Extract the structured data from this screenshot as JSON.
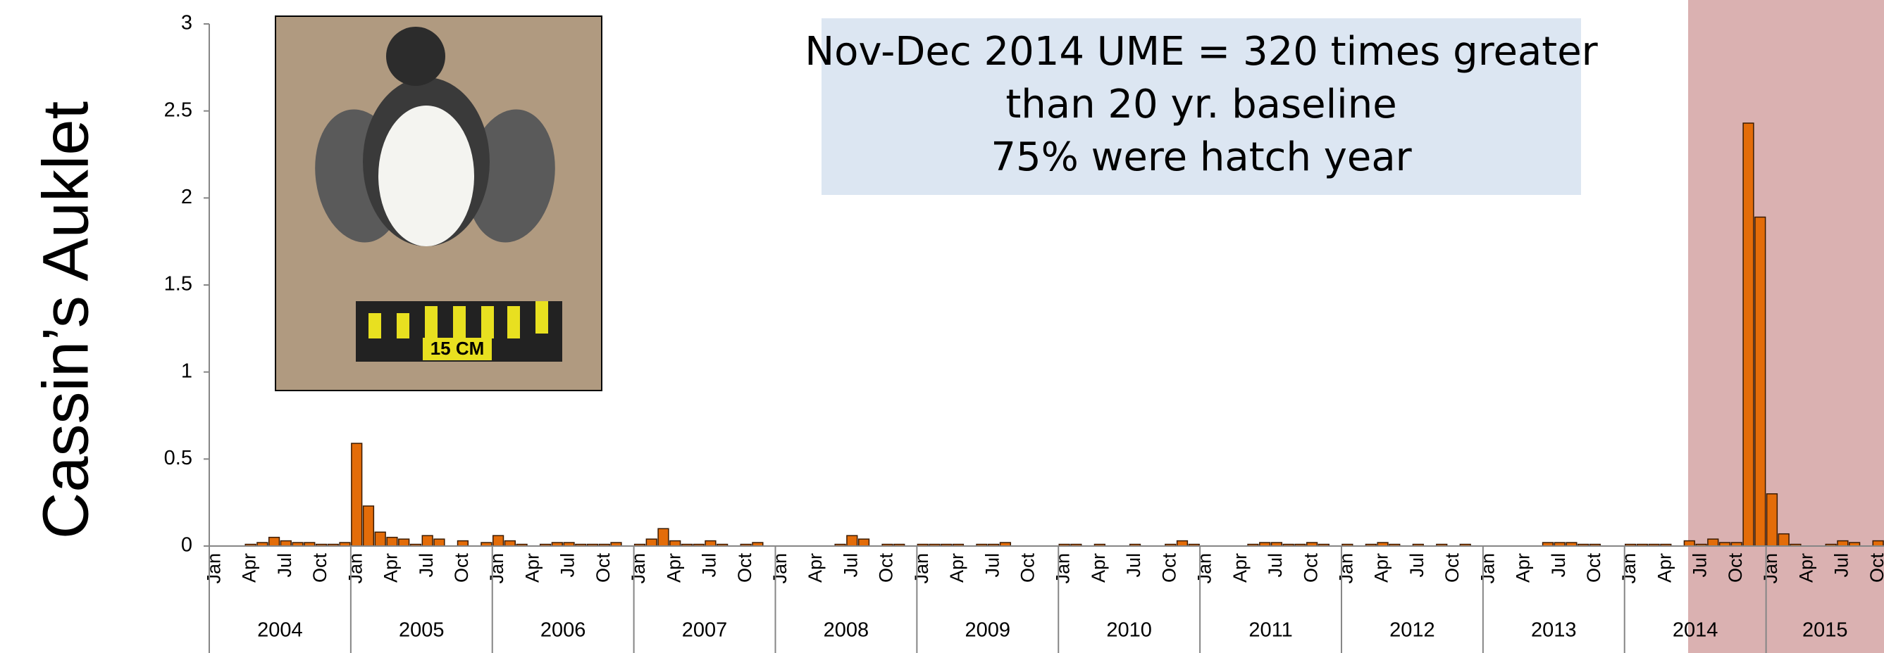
{
  "chart_data": {
    "type": "bar",
    "y_label": "Cassin’s Auklet",
    "annotation": [
      "Nov-Dec 2014 UME = 320 times greater",
      "than 20 yr. baseline",
      "75% were hatch year"
    ],
    "photo_scale_label": "15 CM",
    "color": "#e36c09",
    "ylim": [
      0,
      3
    ],
    "yticks": [
      0,
      0.5,
      1,
      1.5,
      2,
      2.5,
      3
    ],
    "years": [
      "2004",
      "2005",
      "2006",
      "2007",
      "2008",
      "2009",
      "2010",
      "2011",
      "2012",
      "2013",
      "2014",
      "2015"
    ],
    "categories": [
      "Jan",
      null,
      null,
      "Apr",
      null,
      null,
      "Jul",
      null,
      null,
      "Oct",
      null,
      null,
      "Jan",
      null,
      null,
      "Apr",
      null,
      null,
      "Jul",
      null,
      null,
      "Oct",
      null,
      null,
      "Jan",
      null,
      null,
      "Apr",
      null,
      null,
      "Jul",
      null,
      null,
      "Oct",
      null,
      null,
      "Jan",
      null,
      null,
      "Apr",
      null,
      null,
      "Jul",
      null,
      null,
      "Oct",
      null,
      null,
      "Jan",
      null,
      null,
      "Apr",
      null,
      null,
      "Jul",
      null,
      null,
      "Oct",
      null,
      null,
      "Jan",
      null,
      null,
      "Apr",
      null,
      null,
      "Jul",
      null,
      null,
      "Oct",
      null,
      null,
      "Jan",
      null,
      null,
      "Apr",
      null,
      null,
      "Jul",
      null,
      null,
      "Oct",
      null,
      null,
      "Jan",
      null,
      null,
      "Apr",
      null,
      null,
      "Jul",
      null,
      null,
      "Oct",
      null,
      null,
      "Jan",
      null,
      null,
      "Apr",
      null,
      null,
      "Jul",
      null,
      null,
      "Oct",
      null,
      null,
      "Jan",
      null,
      null,
      "Apr",
      null,
      null,
      "Jul",
      null,
      null,
      "Oct",
      null,
      null,
      "Jan",
      null,
      null,
      "Apr",
      null,
      null,
      "Jul",
      null,
      null,
      "Oct",
      null,
      null,
      "Jan",
      null,
      null,
      "Apr",
      null,
      null,
      "Jul",
      null,
      null,
      "Oct"
    ],
    "values": [
      0,
      0,
      0,
      0.01,
      0.02,
      0.05,
      0.03,
      0.02,
      0.02,
      0.01,
      0.01,
      0.02,
      0.59,
      0.23,
      0.08,
      0.05,
      0.04,
      0.01,
      0.06,
      0.04,
      0,
      0.03,
      0,
      0.02,
      0.06,
      0.03,
      0.01,
      0,
      0.01,
      0.02,
      0.02,
      0.01,
      0.01,
      0.01,
      0.02,
      0,
      0.01,
      0.04,
      0.1,
      0.03,
      0.01,
      0.01,
      0.03,
      0.01,
      0,
      0.01,
      0.02,
      0,
      0,
      0,
      0,
      0,
      0,
      0.01,
      0.06,
      0.04,
      0,
      0.01,
      0.01,
      0,
      0.01,
      0.01,
      0.01,
      0.01,
      0,
      0.01,
      0.01,
      0.02,
      0,
      0,
      0,
      0,
      0.01,
      0.01,
      0,
      0.01,
      0,
      0,
      0.01,
      0,
      0,
      0.01,
      0.03,
      0.01,
      0,
      0,
      0,
      0,
      0.01,
      0.02,
      0.02,
      0.01,
      0.01,
      0.02,
      0.01,
      0,
      0.01,
      0,
      0.01,
      0.02,
      0.01,
      0,
      0.01,
      0,
      0.01,
      0,
      0.01,
      0,
      0,
      0,
      0,
      0,
      0,
      0.02,
      0.02,
      0.02,
      0.01,
      0.01,
      0,
      0,
      0.01,
      0.01,
      0.01,
      0.01,
      0,
      0.03,
      0.01,
      0.04,
      0.02,
      0.02,
      2.43,
      1.89,
      0.3,
      0.07,
      0.01,
      0,
      0,
      0.01,
      0.03,
      0.02,
      0,
      0.03
    ]
  }
}
